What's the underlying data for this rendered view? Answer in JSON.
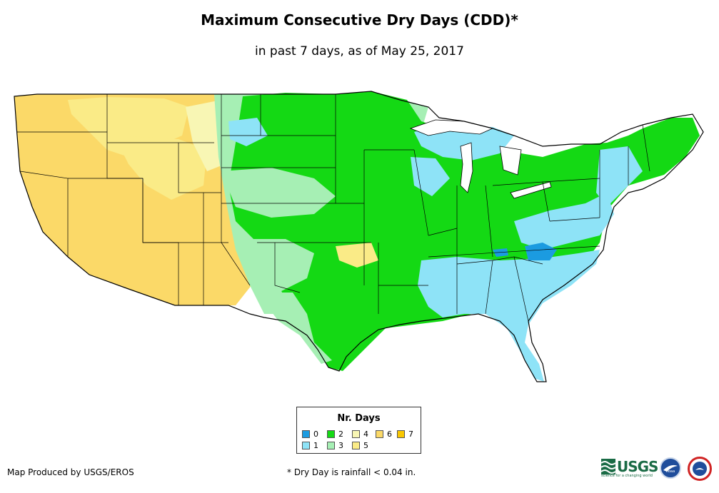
{
  "header": {
    "title": "Maximum Consecutive Dry Days (CDD)*",
    "subtitle": "in past 7 days, as of May 25, 2017"
  },
  "legend": {
    "title": "Nr. Days",
    "items": [
      {
        "label": "0",
        "color": "#1b9be0"
      },
      {
        "label": "1",
        "color": "#8ee3f7"
      },
      {
        "label": "2",
        "color": "#14d914"
      },
      {
        "label": "3",
        "color": "#a6efb4"
      },
      {
        "label": "4",
        "color": "#f8f6b4"
      },
      {
        "label": "5",
        "color": "#faeb87"
      },
      {
        "label": "6",
        "color": "#fbd968"
      },
      {
        "label": "7",
        "color": "#f9c700"
      }
    ]
  },
  "footer": {
    "credit": "Map Produced by USGS/EROS",
    "footnote": "* Dry Day is rainfall < 0.04 in.",
    "logos": {
      "usgs": "USGS",
      "usgs_tagline": "science for a changing world",
      "noaa": "noaa"
    }
  }
}
